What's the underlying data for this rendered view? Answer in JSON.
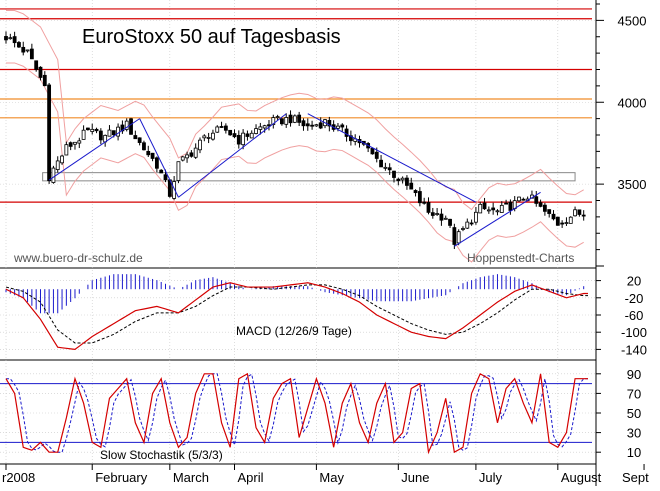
{
  "colors": {
    "background": "#ffffff",
    "grid": "#c8c8c8",
    "candle": "#000000",
    "resistance_red": "#d40000",
    "support_orange": "#f08c28",
    "trend_blue": "#1a1acc",
    "bollinger_pink": "#f0a0a0",
    "macd_line": "#d40000",
    "macd_signal": "#000000",
    "macd_hist": "#1a1acc",
    "stoch_k": "#d40000",
    "stoch_d": "#1a1acc",
    "box": "#888888"
  },
  "chart_data": [
    {
      "type": "candlestick",
      "title": "EuroStoxx 50 auf Tagesbasis",
      "watermark_left": "www.buero-dr-schulz.de",
      "watermark_right": "Hoppenstedt-Charts",
      "ylim": [
        3000,
        4600
      ],
      "y_ticks": [
        "4500",
        "4000",
        "3500"
      ],
      "y_tick_values": [
        4500,
        4000,
        3500
      ],
      "horizontal_lines": [
        {
          "value": 4570,
          "color": "red"
        },
        {
          "value": 4510,
          "color": "red"
        },
        {
          "value": 4200,
          "color": "red"
        },
        {
          "value": 4020,
          "color": "orange"
        },
        {
          "value": 3905,
          "color": "orange"
        },
        {
          "value": 3390,
          "color": "red"
        }
      ],
      "support_box": [
        3520,
        3570
      ],
      "price_path": [
        [
          0,
          4400
        ],
        [
          5,
          4300
        ],
        [
          9,
          4100
        ],
        [
          10,
          3550
        ],
        [
          14,
          3720
        ],
        [
          19,
          3820
        ],
        [
          23,
          3790
        ],
        [
          28,
          3860
        ],
        [
          31,
          3750
        ],
        [
          35,
          3620
        ],
        [
          38,
          3440
        ],
        [
          40,
          3620
        ],
        [
          44,
          3720
        ],
        [
          47,
          3810
        ],
        [
          51,
          3830
        ],
        [
          54,
          3770
        ],
        [
          57,
          3820
        ],
        [
          62,
          3880
        ],
        [
          66,
          3900
        ],
        [
          70,
          3850
        ],
        [
          74,
          3880
        ],
        [
          78,
          3820
        ],
        [
          82,
          3760
        ],
        [
          86,
          3650
        ],
        [
          90,
          3560
        ],
        [
          94,
          3460
        ],
        [
          98,
          3330
        ],
        [
          102,
          3300
        ],
        [
          104,
          3150
        ],
        [
          106,
          3220
        ],
        [
          110,
          3350
        ],
        [
          114,
          3330
        ],
        [
          118,
          3380
        ],
        [
          121,
          3430
        ],
        [
          124,
          3350
        ],
        [
          128,
          3260
        ],
        [
          132,
          3320
        ]
      ],
      "n_days": 135
    },
    {
      "type": "line",
      "label": "MACD (12/26/9 Tage)",
      "ylim": [
        -160,
        40
      ],
      "y_ticks": [
        "20",
        "-20",
        "-60",
        "-100",
        "-140"
      ],
      "y_tick_values": [
        20,
        -20,
        -60,
        -100,
        -140
      ],
      "macd": [
        [
          0,
          0
        ],
        [
          4,
          -20
        ],
        [
          8,
          -70
        ],
        [
          12,
          -135
        ],
        [
          16,
          -140
        ],
        [
          20,
          -110
        ],
        [
          25,
          -80
        ],
        [
          30,
          -50
        ],
        [
          35,
          -40
        ],
        [
          40,
          -55
        ],
        [
          44,
          -25
        ],
        [
          48,
          5
        ],
        [
          52,
          15
        ],
        [
          56,
          5
        ],
        [
          62,
          5
        ],
        [
          66,
          10
        ],
        [
          70,
          15
        ],
        [
          74,
          5
        ],
        [
          78,
          -10
        ],
        [
          82,
          -30
        ],
        [
          86,
          -60
        ],
        [
          90,
          -80
        ],
        [
          94,
          -100
        ],
        [
          98,
          -110
        ],
        [
          102,
          -115
        ],
        [
          106,
          -90
        ],
        [
          110,
          -60
        ],
        [
          114,
          -30
        ],
        [
          118,
          -5
        ],
        [
          122,
          10
        ],
        [
          126,
          -5
        ],
        [
          130,
          -20
        ],
        [
          134,
          -10
        ]
      ],
      "signal": [
        [
          0,
          5
        ],
        [
          4,
          -5
        ],
        [
          8,
          -30
        ],
        [
          12,
          -95
        ],
        [
          16,
          -125
        ],
        [
          20,
          -125
        ],
        [
          25,
          -105
        ],
        [
          30,
          -75
        ],
        [
          35,
          -55
        ],
        [
          40,
          -55
        ],
        [
          44,
          -40
        ],
        [
          48,
          -15
        ],
        [
          52,
          5
        ],
        [
          56,
          5
        ],
        [
          62,
          0
        ],
        [
          66,
          5
        ],
        [
          70,
          10
        ],
        [
          74,
          10
        ],
        [
          78,
          0
        ],
        [
          82,
          -15
        ],
        [
          86,
          -40
        ],
        [
          90,
          -60
        ],
        [
          94,
          -80
        ],
        [
          98,
          -95
        ],
        [
          102,
          -105
        ],
        [
          106,
          -100
        ],
        [
          110,
          -80
        ],
        [
          114,
          -55
        ],
        [
          118,
          -25
        ],
        [
          122,
          0
        ],
        [
          126,
          0
        ],
        [
          130,
          -10
        ],
        [
          134,
          -15
        ]
      ]
    },
    {
      "type": "line",
      "label": "Slow Stochastik (5/3/3)",
      "ylim": [
        0,
        100
      ],
      "y_ticks": [
        "90",
        "70",
        "50",
        "30",
        "10"
      ],
      "y_tick_values": [
        90,
        70,
        50,
        30,
        10
      ],
      "reference_lines": [
        80,
        20
      ],
      "stoch_k": [
        [
          0,
          85
        ],
        [
          2,
          70
        ],
        [
          4,
          15
        ],
        [
          6,
          12
        ],
        [
          8,
          20
        ],
        [
          10,
          10
        ],
        [
          12,
          10
        ],
        [
          14,
          45
        ],
        [
          16,
          85
        ],
        [
          18,
          60
        ],
        [
          20,
          20
        ],
        [
          22,
          15
        ],
        [
          24,
          65
        ],
        [
          26,
          75
        ],
        [
          28,
          85
        ],
        [
          30,
          40
        ],
        [
          32,
          20
        ],
        [
          34,
          70
        ],
        [
          36,
          85
        ],
        [
          38,
          40
        ],
        [
          40,
          15
        ],
        [
          42,
          25
        ],
        [
          44,
          70
        ],
        [
          46,
          90
        ],
        [
          48,
          90
        ],
        [
          50,
          40
        ],
        [
          52,
          15
        ],
        [
          54,
          85
        ],
        [
          56,
          90
        ],
        [
          58,
          35
        ],
        [
          60,
          20
        ],
        [
          62,
          65
        ],
        [
          64,
          80
        ],
        [
          66,
          85
        ],
        [
          68,
          25
        ],
        [
          70,
          55
        ],
        [
          72,
          85
        ],
        [
          74,
          60
        ],
        [
          76,
          15
        ],
        [
          78,
          60
        ],
        [
          80,
          80
        ],
        [
          82,
          40
        ],
        [
          84,
          20
        ],
        [
          86,
          60
        ],
        [
          88,
          80
        ],
        [
          90,
          20
        ],
        [
          92,
          30
        ],
        [
          94,
          75
        ],
        [
          96,
          80
        ],
        [
          98,
          10
        ],
        [
          100,
          30
        ],
        [
          102,
          65
        ],
        [
          104,
          10
        ],
        [
          106,
          15
        ],
        [
          108,
          70
        ],
        [
          110,
          90
        ],
        [
          112,
          85
        ],
        [
          114,
          40
        ],
        [
          116,
          75
        ],
        [
          118,
          85
        ],
        [
          120,
          60
        ],
        [
          122,
          40
        ],
        [
          124,
          90
        ],
        [
          126,
          20
        ],
        [
          128,
          15
        ],
        [
          130,
          30
        ],
        [
          132,
          85
        ],
        [
          134,
          85
        ]
      ]
    }
  ],
  "x_axis": {
    "labels": [
      "r2008",
      "February",
      "March",
      "April",
      "May",
      "June",
      "July",
      "August",
      "Sept"
    ],
    "positions": [
      0,
      20,
      38,
      53,
      72,
      91,
      109,
      128,
      148
    ]
  }
}
